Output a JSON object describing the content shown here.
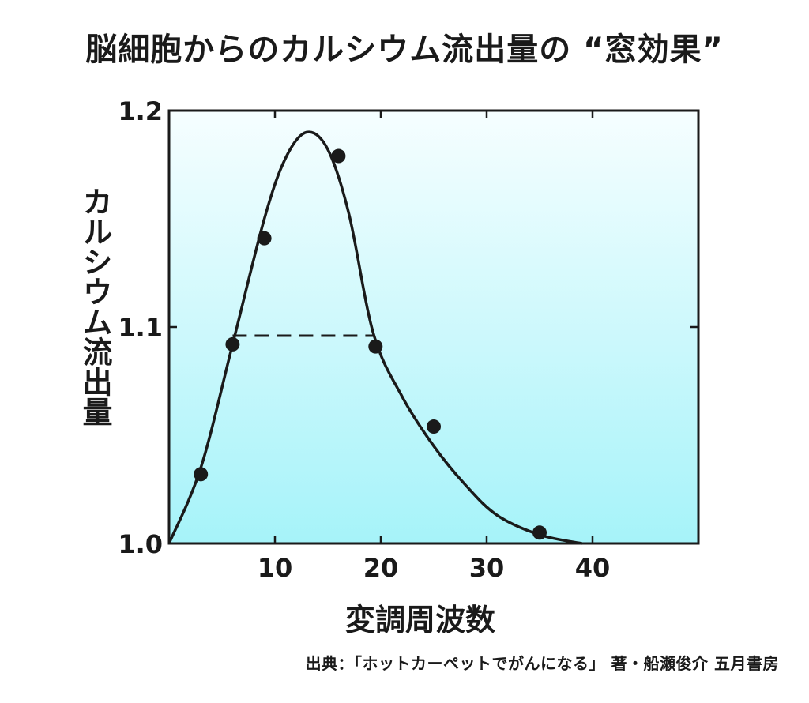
{
  "chart_data": {
    "type": "scatter",
    "title": "脳細胞からのカルシウム流出量の “窓効果”",
    "xlabel": "変調周波数",
    "ylabel": "カルシウム流出量",
    "xlim": [
      0,
      50
    ],
    "ylim": [
      1.0,
      1.2
    ],
    "x_ticks": [
      10,
      20,
      30,
      40
    ],
    "y_ticks": [
      1.0,
      1.1,
      1.2
    ],
    "x_tick_labels": [
      "10",
      "20",
      "30",
      "40"
    ],
    "y_tick_labels": [
      "1.0",
      "1.1",
      "1.2"
    ],
    "grid": false,
    "background": "light cyan gradient",
    "points": [
      {
        "x": 3,
        "y": 1.032
      },
      {
        "x": 6,
        "y": 1.092
      },
      {
        "x": 9,
        "y": 1.141
      },
      {
        "x": 16,
        "y": 1.179
      },
      {
        "x": 19.5,
        "y": 1.091
      },
      {
        "x": 25,
        "y": 1.054
      },
      {
        "x": 35,
        "y": 1.005
      }
    ],
    "fit_curve": [
      {
        "x": 0,
        "y": 1.0
      },
      {
        "x": 3,
        "y": 1.035
      },
      {
        "x": 6,
        "y": 1.092
      },
      {
        "x": 9,
        "y": 1.15
      },
      {
        "x": 11,
        "y": 1.178
      },
      {
        "x": 13,
        "y": 1.19
      },
      {
        "x": 15,
        "y": 1.182
      },
      {
        "x": 17,
        "y": 1.152
      },
      {
        "x": 19.3,
        "y": 1.097
      },
      {
        "x": 22,
        "y": 1.068
      },
      {
        "x": 25,
        "y": 1.045
      },
      {
        "x": 28,
        "y": 1.027
      },
      {
        "x": 31,
        "y": 1.013
      },
      {
        "x": 35,
        "y": 1.004
      },
      {
        "x": 39,
        "y": 1.0
      }
    ],
    "reference_line": {
      "x_start": 6,
      "x_end": 19.3,
      "y": 1.096,
      "style": "dashed"
    }
  },
  "source": "出典：「ホットカーペットでがんになる」 著・船瀬俊介 五月書房",
  "colors": {
    "plot_bg_top": "#f6feff",
    "plot_bg_bottom": "#a6f3f9",
    "ink": "#1a1a1a"
  }
}
